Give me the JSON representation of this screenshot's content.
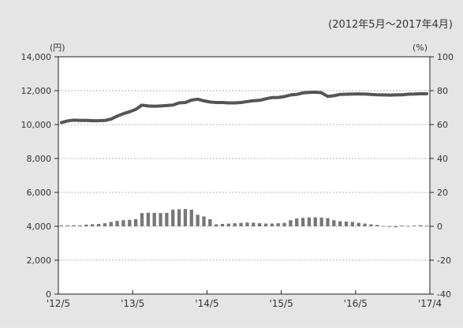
{
  "chart_data": {
    "type": "bar+line",
    "period_label": "(2012年5月～2017年4月)",
    "left_unit": "(円)",
    "right_unit": "(%)",
    "y_left": {
      "min": 0,
      "max": 14000,
      "ticks": [
        "0",
        "2,000",
        "4,000",
        "6,000",
        "8,000",
        "10,000",
        "12,000",
        "14,000"
      ]
    },
    "y_right": {
      "min": -40,
      "max": 100,
      "ticks": [
        "-40",
        "-20",
        "0",
        "20",
        "40",
        "60",
        "80",
        "100"
      ]
    },
    "x_ticks": [
      "'12/5",
      "'13/5",
      "'14/5",
      "'15/5",
      "'16/5",
      "'17/4"
    ],
    "months": 60,
    "grid": true,
    "series": [
      {
        "axis": "left",
        "kind": "line",
        "color": "#555555",
        "values": [
          10120,
          10220,
          10260,
          10240,
          10250,
          10230,
          10230,
          10240,
          10320,
          10500,
          10640,
          10760,
          10900,
          11150,
          11100,
          11080,
          11100,
          11120,
          11150,
          11280,
          11300,
          11440,
          11500,
          11400,
          11330,
          11300,
          11300,
          11280,
          11280,
          11300,
          11360,
          11410,
          11430,
          11520,
          11590,
          11600,
          11650,
          11750,
          11780,
          11870,
          11900,
          11910,
          11880,
          11660,
          11700,
          11780,
          11790,
          11800,
          11810,
          11800,
          11780,
          11760,
          11750,
          11740,
          11750,
          11760,
          11790,
          11800,
          11820,
          11820
        ]
      },
      {
        "axis": "right",
        "kind": "bar",
        "color": "#777777",
        "values": [
          0.5,
          0.5,
          0.6,
          0.6,
          1.0,
          1.2,
          1.4,
          1.8,
          2.6,
          3.2,
          3.6,
          3.8,
          4.2,
          7.8,
          8.0,
          7.9,
          7.8,
          7.9,
          9.8,
          10.0,
          10.2,
          9.8,
          6.8,
          5.8,
          4.2,
          1.2,
          1.4,
          1.6,
          1.8,
          2.0,
          2.2,
          2.1,
          1.8,
          1.6,
          1.6,
          1.8,
          2.0,
          3.6,
          4.6,
          5.0,
          5.2,
          5.3,
          5.1,
          4.8,
          3.6,
          3.0,
          2.8,
          2.6,
          2.0,
          1.6,
          1.2,
          0.8,
          0.2,
          -0.4,
          -0.6,
          0.4,
          0.2,
          0.4,
          0.6,
          0.4
        ]
      }
    ]
  }
}
